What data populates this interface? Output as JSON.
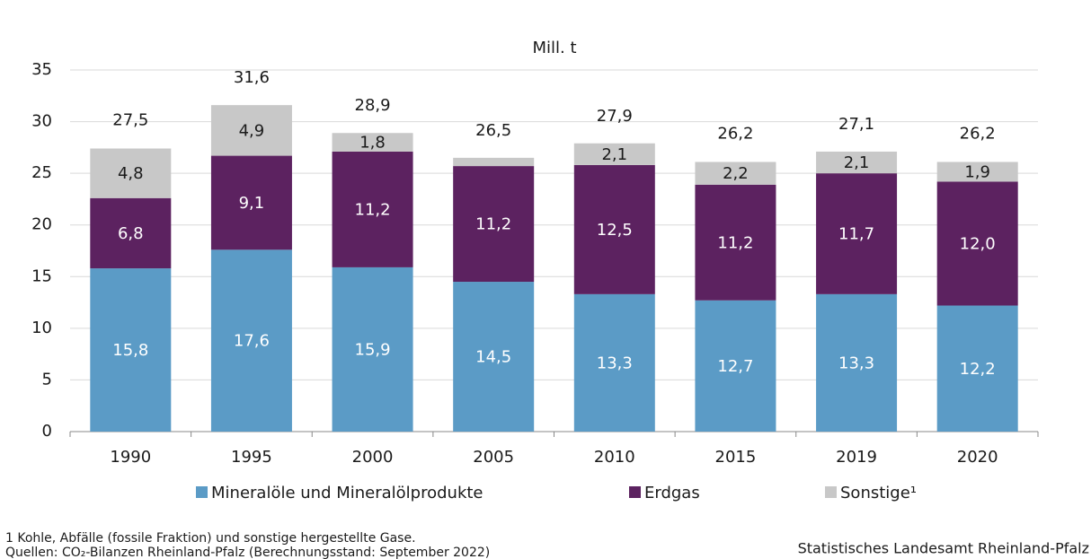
{
  "chart_data": {
    "type": "stacked_bar",
    "unit_label": "Mill. t",
    "categories": [
      "1990",
      "1995",
      "2000",
      "2005",
      "2010",
      "2015",
      "2019",
      "2020"
    ],
    "series": [
      {
        "name": "Mineralöle und Mineralölprodukte",
        "color": "#5b9bc6",
        "values": [
          15.8,
          17.6,
          15.9,
          14.5,
          13.3,
          12.7,
          13.3,
          12.2
        ],
        "value_labels": [
          "15,8",
          "17,6",
          "15,9",
          "14,5",
          "13,3",
          "12,7",
          "13,3",
          "12,2"
        ]
      },
      {
        "name": "Erdgas",
        "color": "#5c2260",
        "values": [
          6.8,
          9.1,
          11.2,
          11.2,
          12.5,
          11.2,
          11.7,
          12.0
        ],
        "value_labels": [
          "6,8",
          "9,1",
          "11,2",
          "11,2",
          "12,5",
          "11,2",
          "11,7",
          "12,0"
        ]
      },
      {
        "name": "Sonstige¹",
        "color": "#c8c8c8",
        "values": [
          4.8,
          4.9,
          1.8,
          0.8,
          2.1,
          2.2,
          2.1,
          1.9
        ],
        "value_labels": [
          "4,8",
          "4,9",
          "1,8",
          null,
          "2,1",
          "2,2",
          "2,1",
          "1,9"
        ]
      }
    ],
    "totals": [
      27.5,
      31.6,
      28.9,
      26.5,
      27.9,
      26.2,
      27.1,
      26.2
    ],
    "total_labels": [
      "27,5",
      "31,6",
      "28,9",
      "26,5",
      "27,9",
      "26,2",
      "27,1",
      "26,2"
    ],
    "ylim": [
      0,
      35
    ],
    "yticks": [
      0,
      5,
      10,
      15,
      20,
      25,
      30,
      35
    ],
    "grid": true,
    "footnote": "1 Kohle, Abfälle (fossile Fraktion) und sonstige hergestellte Gase.",
    "source": "Quellen: CO₂-Bilanzen Rheinland-Pfalz (Berechnungsstand: September 2022)",
    "publisher": "Statistisches Landesamt Rheinland-Pfalz"
  }
}
